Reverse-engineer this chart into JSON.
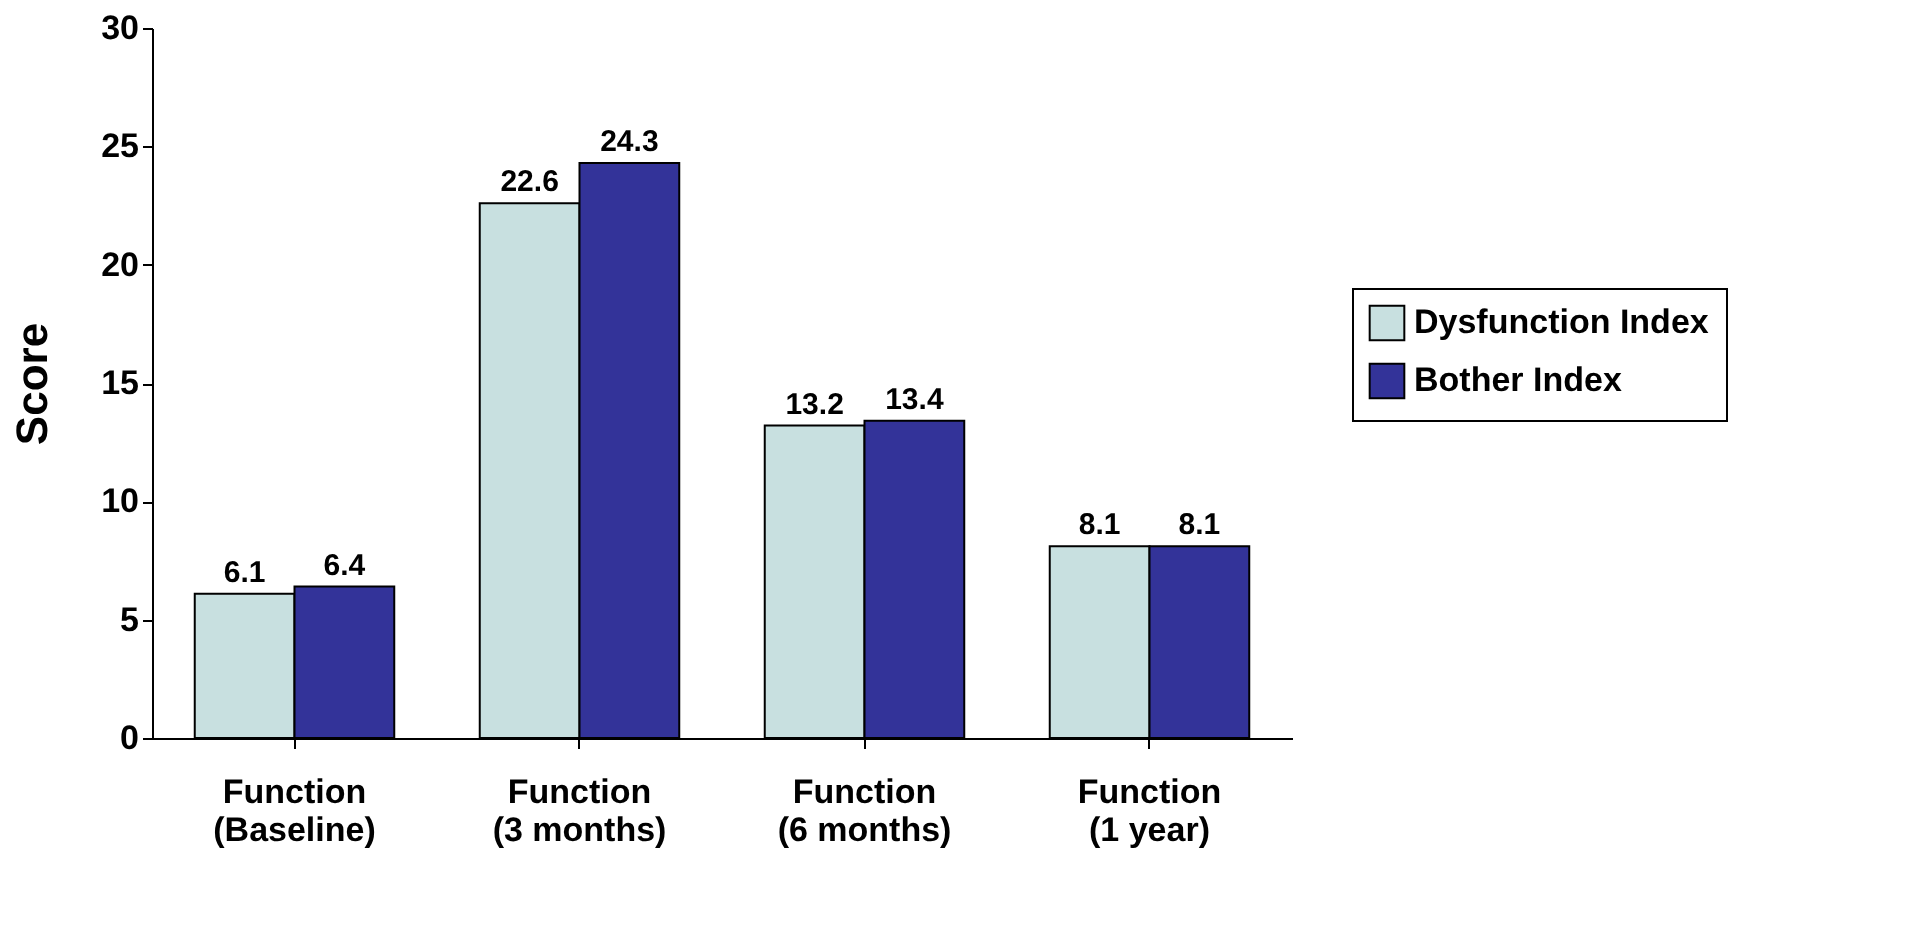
{
  "chart_data": {
    "type": "bar",
    "ylabel": "Score",
    "categories": [
      "Function\n(Baseline)",
      "Function\n(3 months)",
      "Function\n(6 months)",
      "Function\n(1 year)"
    ],
    "series": [
      {
        "name": "Dysfunction Index",
        "color": "#c8e0e0",
        "values": [
          6.1,
          22.6,
          13.2,
          8.1
        ]
      },
      {
        "name": "Bother Index",
        "color": "#333399",
        "values": [
          6.4,
          24.3,
          13.4,
          8.1
        ]
      }
    ],
    "ylim": [
      0,
      30
    ],
    "yticks": [
      0,
      5,
      10,
      15,
      20,
      25,
      30
    ],
    "grid": false,
    "legend": "right",
    "data_labels": true
  }
}
